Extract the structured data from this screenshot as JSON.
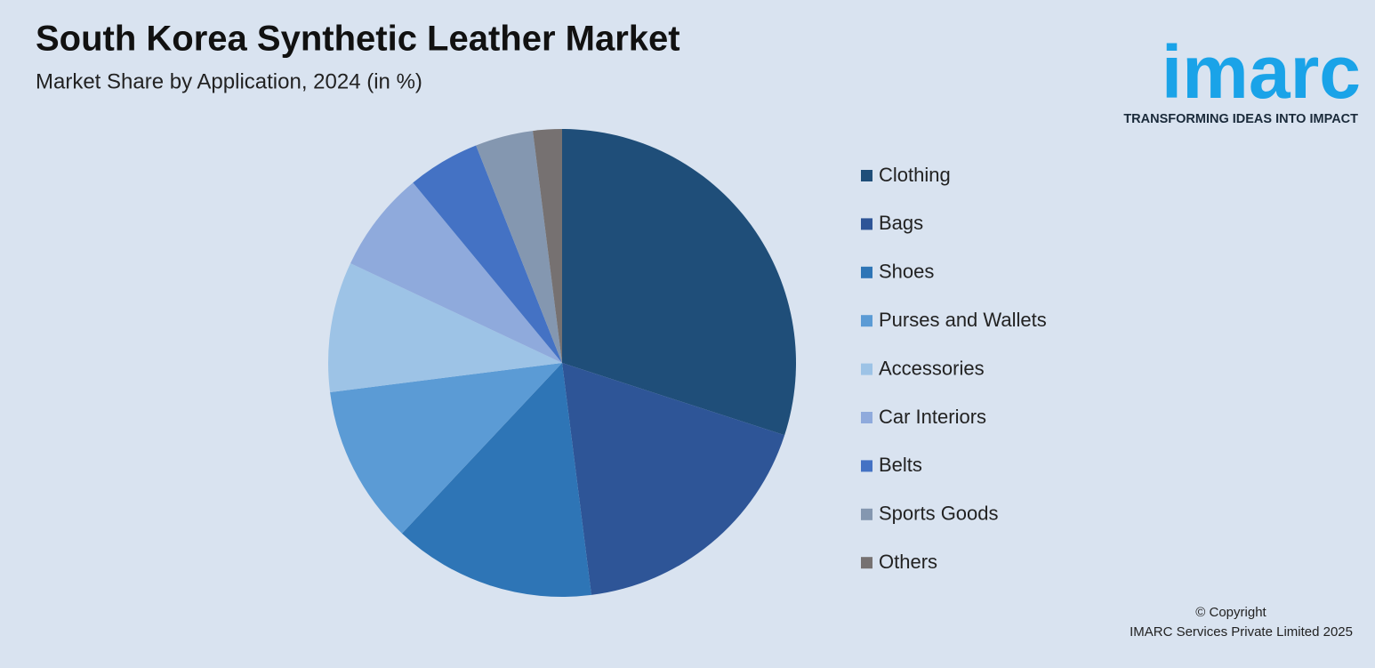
{
  "chart_data": {
    "type": "pie",
    "title": "South Korea Synthetic Leather Market",
    "subtitle": "Market Share by Application, 2024 (in %)",
    "categories": [
      "Clothing",
      "Bags",
      "Shoes",
      "Purses and Wallets",
      "Accessories",
      "Car Interiors",
      "Belts",
      "Sports Goods",
      "Others"
    ],
    "values": [
      30,
      18,
      14,
      11,
      9,
      7,
      5,
      4,
      2
    ],
    "colors": [
      "#1f4e79",
      "#2e5597",
      "#2e75b6",
      "#5b9bd5",
      "#9dc3e6",
      "#8faadc",
      "#4472c4",
      "#8497b0",
      "#767171"
    ],
    "legend": "right"
  },
  "logo": {
    "name": "imarc",
    "tagline": "TRANSFORMING IDEAS INTO IMPACT"
  },
  "footer": {
    "line1": "© Copyright",
    "line2": "IMARC Services Private Limited 2025"
  }
}
